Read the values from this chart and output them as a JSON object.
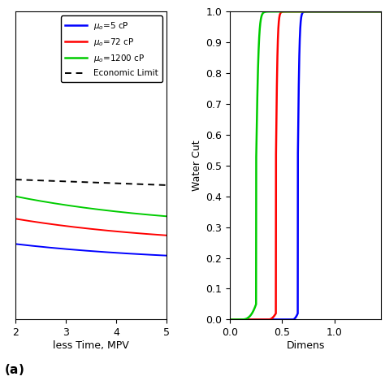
{
  "left_plot": {
    "xlabel": "less Time, MPV",
    "xlim": [
      2,
      5
    ],
    "ylim": [
      0,
      0.055
    ],
    "xticks": [
      2,
      3,
      4,
      5
    ],
    "lines": [
      {
        "color": "#0000ff",
        "mu": 5,
        "y_start": 0.0135,
        "y_end": 0.01,
        "type": "oil"
      },
      {
        "color": "#ff0000",
        "mu": 72,
        "y_start": 0.018,
        "y_end": 0.013,
        "type": "oil"
      },
      {
        "color": "#00cc00",
        "mu": 1200,
        "y_start": 0.022,
        "y_end": 0.016,
        "type": "oil"
      },
      {
        "color": "#000000",
        "y_start": 0.025,
        "y_end": 0.024,
        "type": "economic"
      }
    ]
  },
  "right_plot": {
    "ylabel": "Water Cut",
    "xlabel": "Dimens",
    "xlim": [
      0,
      1.45
    ],
    "ylim": [
      0,
      1.0
    ],
    "xticks": [
      0,
      0.5,
      1.0
    ],
    "yticks": [
      0.0,
      0.1,
      0.2,
      0.3,
      0.4,
      0.5,
      0.6,
      0.7,
      0.8,
      0.9,
      1.0
    ],
    "lines": [
      {
        "color": "#0000ff",
        "bt": 0.65,
        "steep": 120,
        "curve_start": 0.6
      },
      {
        "color": "#ff0000",
        "bt": 0.44,
        "steep": 120,
        "curve_start": 0.37
      },
      {
        "color": "#00cc00",
        "bt": 0.25,
        "steep": 80,
        "curve_start": 0.15
      }
    ]
  },
  "legend_entries": [
    {
      "color": "#0000ff",
      "label": "$\\mu_o$=5 cP",
      "ls": "solid"
    },
    {
      "color": "#ff0000",
      "label": "$\\mu_o$=72 cP",
      "ls": "solid"
    },
    {
      "color": "#00cc00",
      "label": "$\\mu_o$=1200 cP",
      "ls": "solid"
    },
    {
      "color": "#000000",
      "label": "Economic Limit",
      "ls": "dashed"
    }
  ]
}
